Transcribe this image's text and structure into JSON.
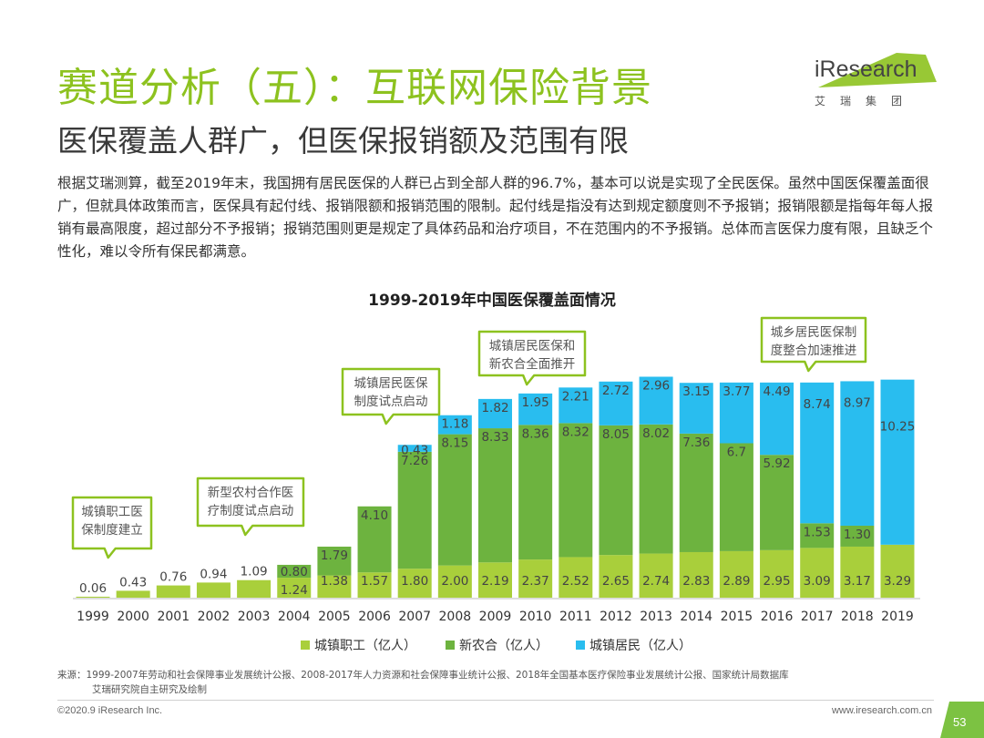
{
  "header": {
    "title": "赛道分析（五）：互联网保险背景",
    "subtitle": "医保覆盖人群广，但医保报销额及范围有限"
  },
  "logo": {
    "word": "iResearch",
    "sub": "艾瑞集团"
  },
  "intro": "根据艾瑞测算，截至2019年末，我国拥有居民医保的人群已占到全部人群的96.7%，基本可以说是实现了全民医保。虽然中国医保覆盖面很广，但就具体政策而言，医保具有起付线、报销限额和报销范围的限制。起付线是指没有达到规定额度则不予报销；报销限额是指每年每人报销有最高限度，超过部分不予报销；报销范围则更是规定了具体药品和治疗项目，不在范围内的不予报销。总体而言医保力度有限，且缺乏个性化，难以令所有保民都满意。",
  "chart_data": {
    "type": "bar",
    "stacked": true,
    "title": "1999-2019年中国医保覆盖面情况",
    "xlabel": "",
    "ylabel": "",
    "ylim": [
      0,
      14.2
    ],
    "categories": [
      "1999",
      "2000",
      "2001",
      "2002",
      "2003",
      "2004",
      "2005",
      "2006",
      "2007",
      "2008",
      "2009",
      "2010",
      "2011",
      "2012",
      "2013",
      "2014",
      "2015",
      "2016",
      "2017",
      "2018",
      "2019"
    ],
    "series": [
      {
        "name": "城镇职工（亿人）",
        "color": "#A9CF3B",
        "values": [
          0.06,
          0.43,
          0.76,
          0.94,
          1.09,
          1.24,
          1.38,
          1.57,
          1.8,
          2.0,
          2.19,
          2.37,
          2.52,
          2.65,
          2.74,
          2.83,
          2.89,
          2.95,
          3.09,
          3.17,
          3.29
        ]
      },
      {
        "name": "新农合（亿人）",
        "color": "#6DB33F",
        "values": [
          null,
          null,
          null,
          null,
          null,
          0.8,
          1.79,
          4.1,
          7.26,
          8.15,
          8.33,
          8.36,
          8.32,
          8.05,
          8.02,
          7.36,
          6.7,
          5.92,
          1.53,
          1.3,
          null
        ]
      },
      {
        "name": "城镇居民（亿人）",
        "color": "#29BDEF",
        "values": [
          null,
          null,
          null,
          null,
          null,
          null,
          null,
          null,
          0.43,
          1.18,
          1.82,
          1.95,
          2.21,
          2.72,
          2.96,
          3.15,
          3.77,
          4.49,
          8.74,
          8.97,
          10.25
        ]
      }
    ],
    "labels": {
      "s0": [
        "0.06",
        "0.43",
        "0.76",
        "0.94",
        "1.09",
        "1.24",
        "1.38",
        "1.57",
        "1.80",
        "2.00",
        "2.19",
        "2.37",
        "2.52",
        "2.65",
        "2.74",
        "2.83",
        "2.89",
        "2.95",
        "3.09",
        "3.17",
        "3.29"
      ],
      "s1": [
        "",
        "",
        "",
        "",
        "",
        "0.80",
        "1.79",
        "4.10",
        "7.26",
        "8.15",
        "8.33",
        "8.36",
        "8.32",
        "8.05",
        "8.02",
        "7.36",
        "6.7",
        "5.92",
        "1.53",
        "1.30",
        ""
      ],
      "s2": [
        "",
        "",
        "",
        "",
        "",
        "",
        "",
        "",
        "0.43",
        "1.18",
        "1.82",
        "1.95",
        "2.21",
        "2.72",
        "2.96",
        "3.15",
        "3.77",
        "4.49",
        "8.74",
        "8.97",
        "10.25"
      ]
    },
    "legend_position": "bottom",
    "grid": false,
    "annotations": [
      {
        "year": "1999",
        "lines": [
          "城镇职工医",
          "保制度建立"
        ]
      },
      {
        "year": "2003",
        "lines": [
          "新型农村合作医",
          "疗制度试点启动"
        ]
      },
      {
        "year": "2007",
        "lines": [
          "城镇居民医保",
          "制度试点启动"
        ]
      },
      {
        "year": "2009",
        "lines": [
          "城镇居民医保和",
          "新农合全面推开"
        ]
      },
      {
        "year": "2016",
        "lines": [
          "城乡居民医保制",
          "度整合加速推进"
        ]
      }
    ]
  },
  "source_note": {
    "line1": "来源：1999-2007年劳动和社会保障事业发展统计公报、2008-2017年人力资源和社会保障事业统计公报、2018年全国基本医疗保险事业发展统计公报、国家统计局数据库",
    "line2": "艾瑞研究院自主研究及绘制"
  },
  "footer": {
    "copyright": "©2020.9 iResearch Inc.",
    "website": "www.iresearch.com.cn",
    "page_number": "53"
  },
  "colors": {
    "accent": "#8DC21F",
    "tab": "#7CC242"
  }
}
